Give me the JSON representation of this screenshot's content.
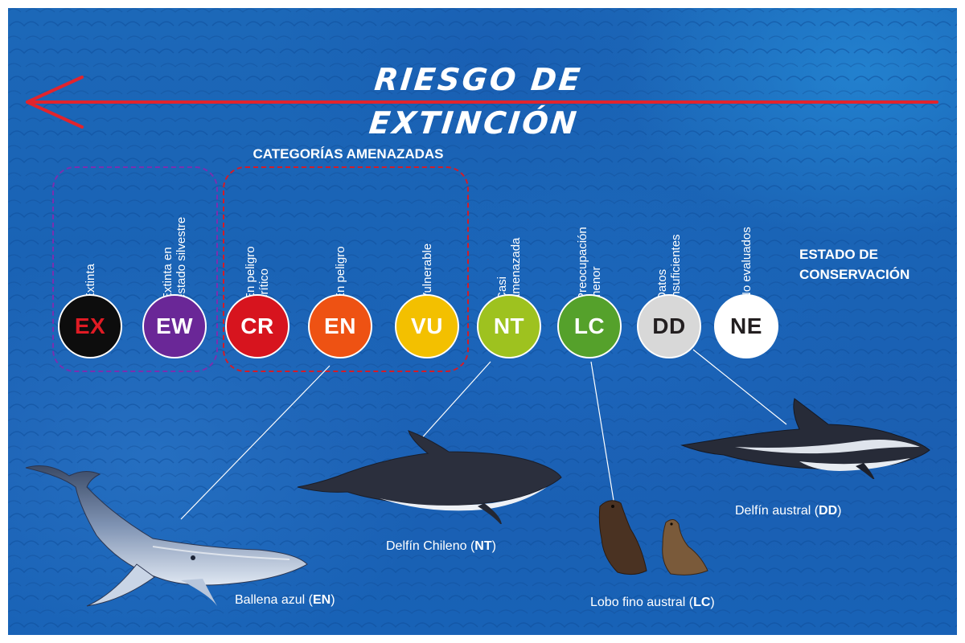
{
  "title": "RIESGO DE EXTINCIÓN",
  "threatened_group_label": "CATEGORÍAS AMENAZADAS",
  "status_label": {
    "line1": "ESTADO DE",
    "line2": "CONSERVACIÓN"
  },
  "categories": [
    {
      "code": "EX",
      "name": "Extinta",
      "color": "#0d0d0d",
      "text_color": "#e01b24"
    },
    {
      "code": "EW",
      "name": "Extinta en\nestado silvestre",
      "color": "#6a2797",
      "text_color": "#ffffff"
    },
    {
      "code": "CR",
      "name": "En peligro\ncrítico",
      "color": "#d7141e",
      "text_color": "#ffffff"
    },
    {
      "code": "EN",
      "name": "En peligro",
      "color": "#ee5213",
      "text_color": "#ffffff"
    },
    {
      "code": "VU",
      "name": "Vulnerable",
      "color": "#f3c000",
      "text_color": "#ffffff"
    },
    {
      "code": "NT",
      "name": "Casi\namenazada",
      "color": "#9ec21f",
      "text_color": "#ffffff"
    },
    {
      "code": "LC",
      "name": "Preocupación\nmenor",
      "color": "#55a12b",
      "text_color": "#ffffff"
    },
    {
      "code": "DD",
      "name": "Datos\ninsuficientes",
      "color": "#d8d8d8",
      "text_color": "#231f20"
    },
    {
      "code": "NE",
      "name": "No evaluados",
      "color": "#ffffff",
      "text_color": "#231f20"
    }
  ],
  "animals": [
    {
      "name": "Ballena azul",
      "category": "EN"
    },
    {
      "name": "Delfín Chileno",
      "category": "NT"
    },
    {
      "name": "Lobo fino austral",
      "category": "LC"
    },
    {
      "name": "Delfín austral",
      "category": "DD"
    }
  ],
  "colors": {
    "arrow": "#e2242d",
    "ocean": "#1a63b5",
    "extinct_group": "#7a2fb0",
    "threatened_group": "#d31c28"
  }
}
